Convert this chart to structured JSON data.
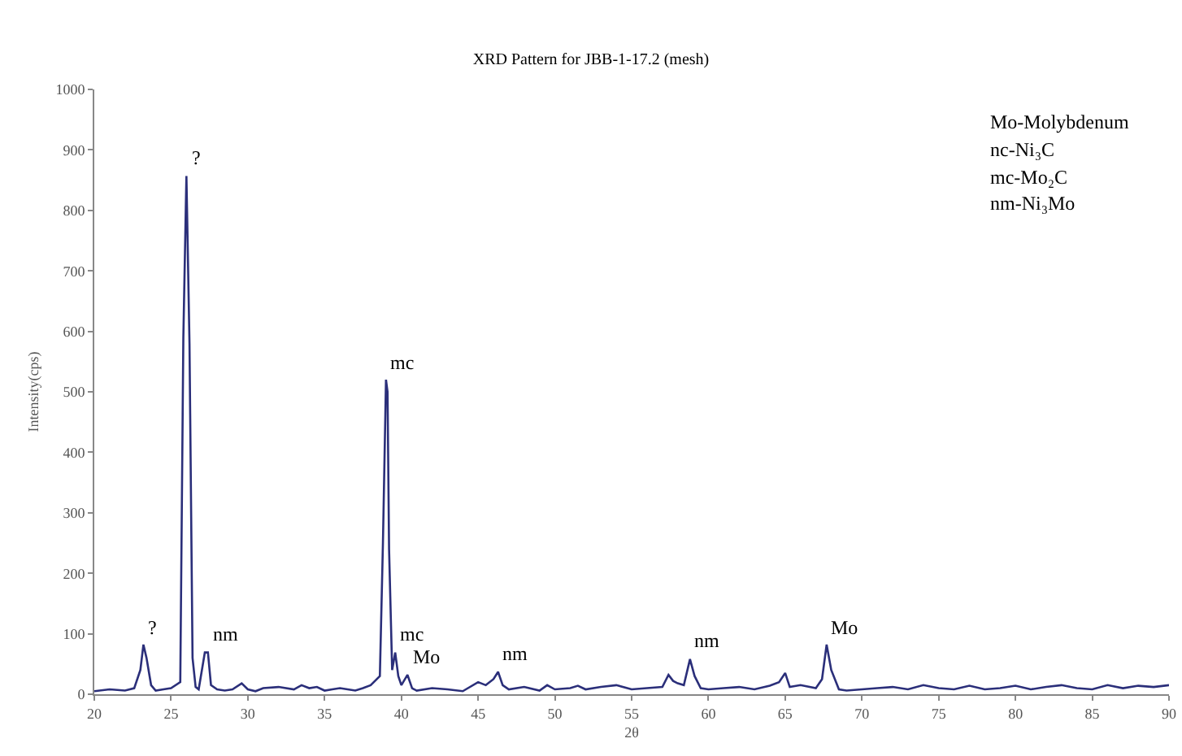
{
  "chart_data": {
    "type": "line",
    "title": "XRD Pattern for JBB-1-17.2 (mesh)",
    "xlabel": "2θ",
    "ylabel": "Intensity(cps)",
    "x": [
      20,
      21,
      22,
      22.6,
      23,
      23.2,
      23.4,
      23.7,
      24,
      24.5,
      25,
      25.6,
      25.8,
      26.0,
      26.2,
      26.4,
      26.6,
      26.8,
      27.2,
      27.4,
      27.6,
      28,
      28.5,
      29,
      29.6,
      30,
      30.5,
      31,
      32,
      33,
      33.5,
      34,
      34.5,
      35,
      35.5,
      36,
      36.5,
      37,
      37.5,
      38,
      38.6,
      38.8,
      39.0,
      39.1,
      39.2,
      39.4,
      39.6,
      39.8,
      40.0,
      40.4,
      40.7,
      41,
      42,
      43,
      44,
      45,
      45.5,
      46,
      46.3,
      46.6,
      47,
      48,
      49,
      49.5,
      50,
      51,
      51.5,
      52,
      53,
      54,
      55,
      56,
      57,
      57.4,
      57.7,
      58,
      58.4,
      58.8,
      59.1,
      59.5,
      60,
      61,
      62,
      63,
      64,
      64.6,
      65,
      65.3,
      66,
      67,
      67.4,
      67.7,
      68,
      68.5,
      69,
      70,
      71,
      72,
      73,
      74,
      75,
      76,
      77,
      78,
      79,
      80,
      81,
      82,
      83,
      84,
      85,
      86,
      87,
      88,
      89,
      90
    ],
    "series": [
      {
        "color": "#2b2f7a",
        "values": [
          5,
          8,
          6,
          10,
          40,
          82,
          60,
          15,
          6,
          8,
          10,
          20,
          590,
          857,
          580,
          60,
          12,
          8,
          69,
          69,
          15,
          8,
          6,
          8,
          18,
          8,
          5,
          10,
          12,
          8,
          15,
          10,
          12,
          6,
          8,
          10,
          8,
          6,
          10,
          15,
          30,
          250,
          520,
          500,
          240,
          40,
          69,
          30,
          15,
          32,
          10,
          6,
          10,
          8,
          5,
          20,
          15,
          25,
          37,
          15,
          8,
          12,
          6,
          15,
          8,
          10,
          14,
          8,
          12,
          15,
          8,
          10,
          12,
          32,
          22,
          18,
          15,
          58,
          30,
          10,
          8,
          10,
          12,
          8,
          14,
          20,
          35,
          12,
          15,
          10,
          25,
          82,
          40,
          8,
          6,
          8,
          10,
          12,
          8,
          15,
          10,
          8,
          14,
          8,
          10,
          14,
          8,
          12,
          15,
          10,
          8,
          15,
          10,
          14,
          12,
          15
        ]
      }
    ],
    "xlim": [
      20,
      90
    ],
    "xticks": [
      20,
      25,
      30,
      35,
      40,
      45,
      50,
      55,
      60,
      65,
      70,
      75,
      80,
      85,
      90
    ],
    "ylim": [
      0,
      1000
    ],
    "yticks": [
      0,
      100,
      200,
      300,
      400,
      500,
      600,
      700,
      800,
      900,
      1000
    ],
    "grid": false,
    "marker": "none",
    "line_style": "solid",
    "annotations": [
      {
        "text": "?",
        "x": 23.2,
        "y": 82
      },
      {
        "text": "?",
        "x": 26.0,
        "y": 857
      },
      {
        "text": "nm",
        "x": 27.4,
        "y": 69
      },
      {
        "text": "mc",
        "x": 39.0,
        "y": 520
      },
      {
        "text": "mc",
        "x": 39.6,
        "y": 69
      },
      {
        "text": "Mo",
        "x": 40.4,
        "y": 32
      },
      {
        "text": "nm",
        "x": 46.3,
        "y": 37
      },
      {
        "text": "nm",
        "x": 58.8,
        "y": 58
      },
      {
        "text": "Mo",
        "x": 67.7,
        "y": 82
      },
      "Mo-Molybdenum",
      "nc-Ni₃C",
      "mc-Mo₂C",
      "nm-Ni₃Mo"
    ]
  }
}
